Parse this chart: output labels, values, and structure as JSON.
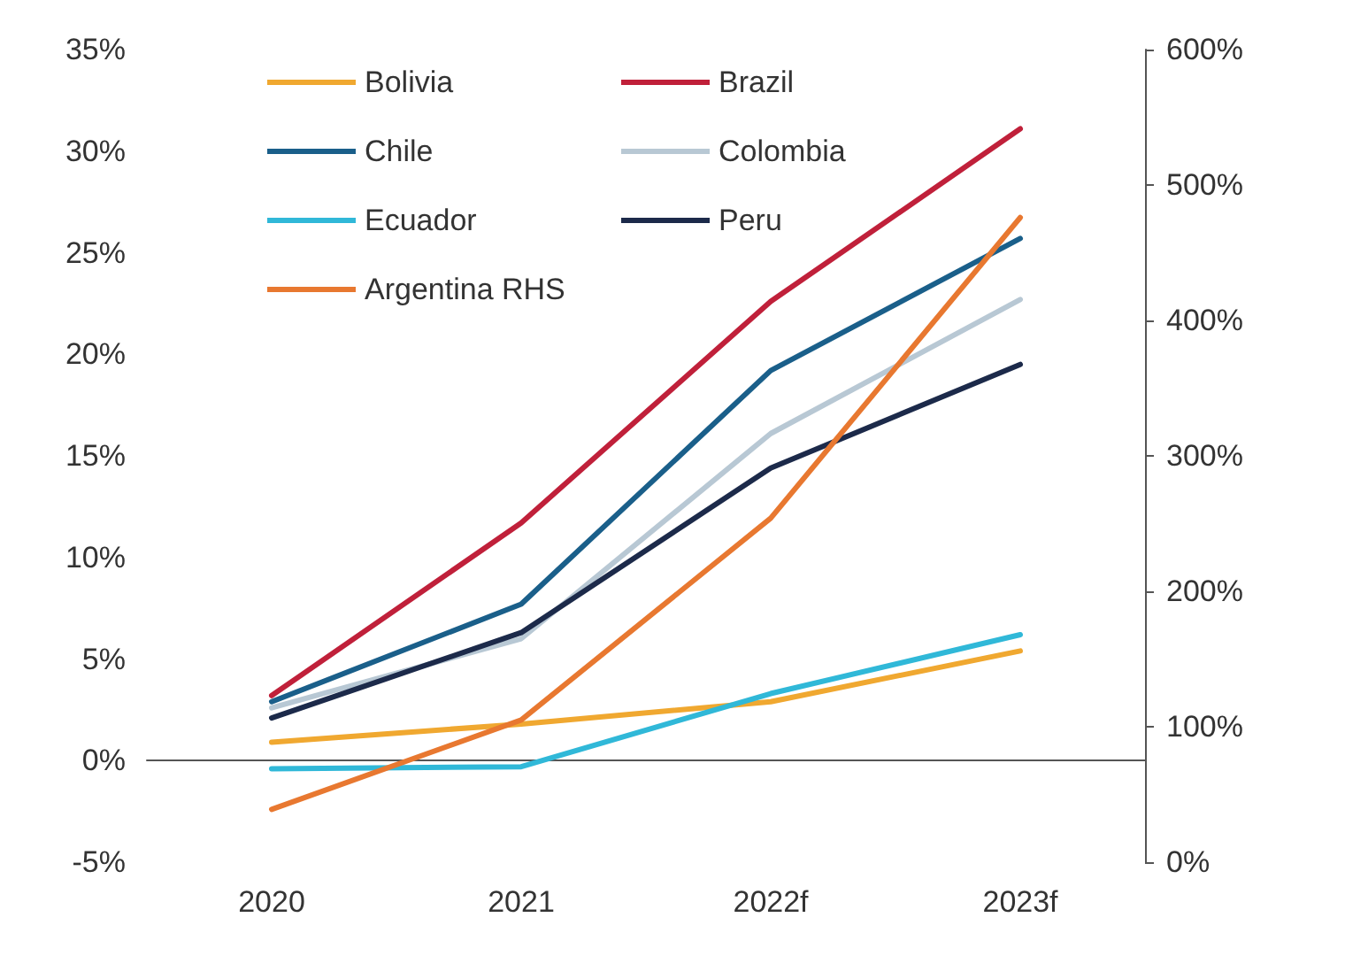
{
  "chart_data": {
    "type": "line",
    "categories": [
      "2020",
      "2021",
      "2022f",
      "2023f"
    ],
    "series": [
      {
        "name": "Bolivia",
        "color": "#f0a830",
        "values": [
          0.9,
          1.8,
          2.9,
          5.4
        ]
      },
      {
        "name": "Brazil",
        "color": "#c0203a",
        "values": [
          3.2,
          11.7,
          22.6,
          31.1
        ]
      },
      {
        "name": "Chile",
        "color": "#1a5f8a",
        "values": [
          2.9,
          7.7,
          19.2,
          25.7
        ]
      },
      {
        "name": "Colombia",
        "color": "#b8c8d4",
        "values": [
          2.6,
          6.0,
          16.1,
          22.7
        ]
      },
      {
        "name": "Ecuador",
        "color": "#30b8d8",
        "values": [
          -0.4,
          -0.3,
          3.3,
          6.2
        ]
      },
      {
        "name": "Peru",
        "color": "#1c2a4a",
        "values": [
          2.1,
          6.3,
          14.4,
          19.5
        ]
      },
      {
        "name": "Argentina RHS",
        "color": "#e87830",
        "axis": "y2",
        "values": [
          39,
          105,
          254,
          476
        ]
      }
    ],
    "ylim": [
      -5,
      35
    ],
    "yticks": [
      {
        "value": -5,
        "label": "-5%"
      },
      {
        "value": 0,
        "label": "0%"
      },
      {
        "value": 5,
        "label": "5%"
      },
      {
        "value": 10,
        "label": "10%"
      },
      {
        "value": 15,
        "label": "15%"
      },
      {
        "value": 20,
        "label": "20%"
      },
      {
        "value": 25,
        "label": "25%"
      },
      {
        "value": 30,
        "label": "30%"
      },
      {
        "value": 35,
        "label": "35%"
      }
    ],
    "y2lim": [
      0,
      600
    ],
    "y2ticks": [
      {
        "value": 0,
        "label": "0%"
      },
      {
        "value": 100,
        "label": "100%"
      },
      {
        "value": 200,
        "label": "200%"
      },
      {
        "value": 300,
        "label": "300%"
      },
      {
        "value": 400,
        "label": "400%"
      },
      {
        "value": 500,
        "label": "500%"
      },
      {
        "value": 600,
        "label": "600%"
      }
    ],
    "legend": "top left",
    "marker": "none",
    "line_style": "solid"
  }
}
